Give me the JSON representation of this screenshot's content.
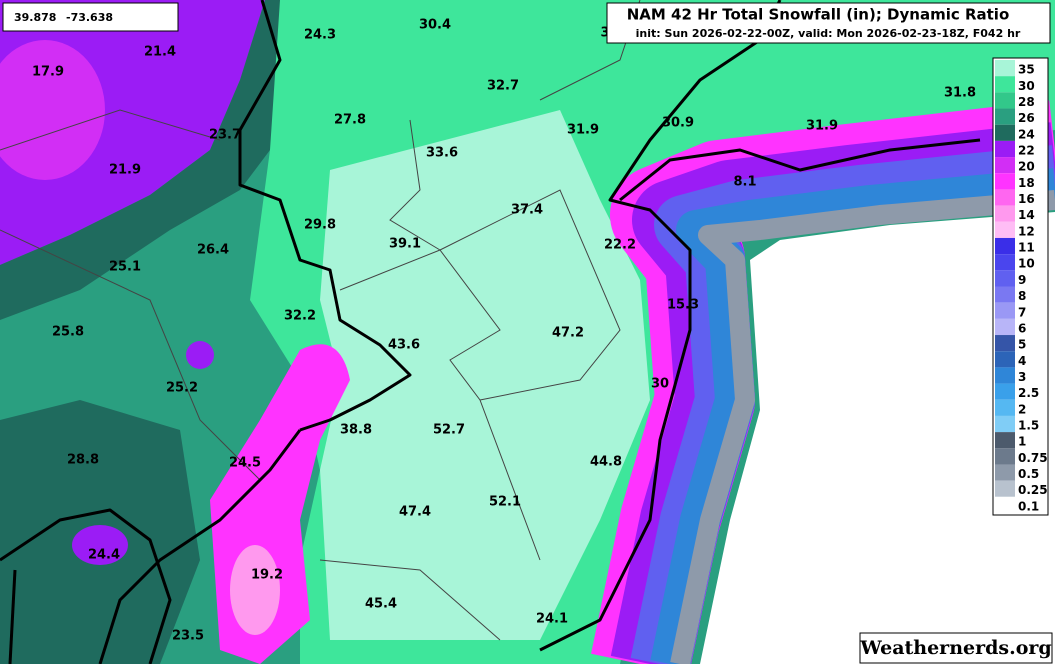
{
  "coords": {
    "lat": "39.878",
    "lon": "-73.638"
  },
  "header": {
    "title": "NAM 42 Hr Total Snowfall (in); Dynamic Ratio",
    "subtitle": "init: Sun 2026-02-22-00Z, valid: Mon 2026-02-23-18Z, F042 hr"
  },
  "legend": [
    {
      "label": "35",
      "color": "#a8f5d8"
    },
    {
      "label": "30",
      "color": "#3ee69b"
    },
    {
      "label": "28",
      "color": "#32c88a"
    },
    {
      "label": "26",
      "color": "#2a9f80"
    },
    {
      "label": "24",
      "color": "#1f6b5e"
    },
    {
      "label": "22",
      "color": "#9b1cf5"
    },
    {
      "label": "20",
      "color": "#d22ef5"
    },
    {
      "label": "18",
      "color": "#ff33ff"
    },
    {
      "label": "16",
      "color": "#ff66f0"
    },
    {
      "label": "14",
      "color": "#ff99ee"
    },
    {
      "label": "12",
      "color": "#ffbdf5"
    },
    {
      "label": "11",
      "color": "#3a2ee8"
    },
    {
      "label": "10",
      "color": "#4a45ee"
    },
    {
      "label": "9",
      "color": "#6060f0"
    },
    {
      "label": "8",
      "color": "#7a78f2"
    },
    {
      "label": "7",
      "color": "#9a98f5"
    },
    {
      "label": "6",
      "color": "#b8b5f8"
    },
    {
      "label": "5",
      "color": "#3555a8"
    },
    {
      "label": "4",
      "color": "#2c64b8"
    },
    {
      "label": "3",
      "color": "#2f86d8"
    },
    {
      "label": "2.5",
      "color": "#3aa0ea"
    },
    {
      "label": "2",
      "color": "#55b8f2"
    },
    {
      "label": "1.5",
      "color": "#80cdf6"
    },
    {
      "label": "1",
      "color": "#4c5a6c"
    },
    {
      "label": "0.75",
      "color": "#6c7a8c"
    },
    {
      "label": "0.5",
      "color": "#8e9aaa"
    },
    {
      "label": "0.25",
      "color": "#b8c2ce"
    },
    {
      "label": "0.1",
      "color": "#ffffff"
    }
  ],
  "labels": [
    "17.9",
    "21.4",
    "24.3",
    "30.4",
    "3",
    "32.7",
    "27.8",
    "23.7",
    "21.9",
    "33.6",
    "31.9",
    "30.9",
    "31.9",
    "31.8",
    "8.1",
    "37.4",
    "29.8",
    "39.1",
    "22.2",
    "26.4",
    "25.1",
    "15.3",
    "32.2",
    "47.2",
    "25.8",
    "43.6",
    "25.2",
    "30",
    "38.8",
    "52.7",
    "24.5",
    "44.8",
    "28.8",
    "47.4",
    "52.1",
    "24.4",
    "19.2",
    "45.4",
    "24.1",
    "23.5"
  ],
  "watermark": "Weathernerds.org"
}
